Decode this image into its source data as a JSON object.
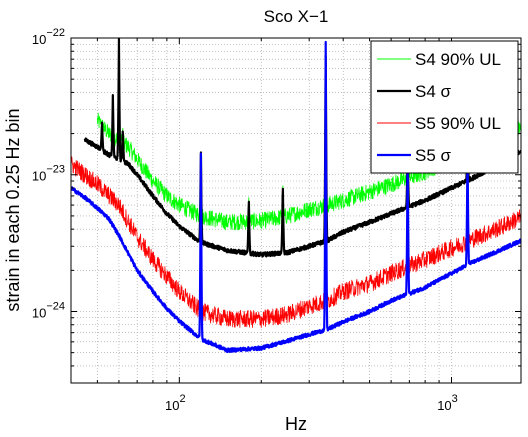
{
  "chart_data": {
    "type": "line",
    "title": "Sco X−1",
    "xlabel": "Hz",
    "ylabel": "strain in each 0.25 Hz bin",
    "x_scale": "log",
    "y_scale": "log",
    "xlim": [
      40,
      1800
    ],
    "ylim": [
      3e-25,
      1e-22
    ],
    "grid": "on",
    "legend_position": "top-right",
    "x_ticks": [
      {
        "value": 100,
        "label_base": "10",
        "label_exp": "2"
      },
      {
        "value": 1000,
        "label_base": "10",
        "label_exp": "3"
      }
    ],
    "y_ticks": [
      {
        "value": 1e-22,
        "label_base": "10",
        "label_exp": "−22"
      },
      {
        "value": 1e-23,
        "label_base": "10",
        "label_exp": "−23"
      },
      {
        "value": 1e-24,
        "label_base": "10",
        "label_exp": "−24"
      }
    ],
    "series": [
      {
        "name": "S4 90% UL",
        "color": "#00ff00",
        "width": 0.8,
        "noise": 0.14,
        "x": [
          50,
          55,
          60,
          65,
          70,
          80,
          90,
          100,
          120,
          150,
          200,
          250,
          300,
          350,
          400,
          500,
          600,
          800,
          1000,
          1200,
          1500,
          1800
        ],
        "y": [
          2.5e-23,
          2e-23,
          1.8e-23,
          1.6e-23,
          1.3e-23,
          9e-24,
          7e-24,
          6e-24,
          5e-24,
          4.5e-24,
          4.6e-24,
          5e-24,
          5.6e-24,
          6e-24,
          6.5e-24,
          7.5e-24,
          8.5e-24,
          1.05e-23,
          1.3e-23,
          1.55e-23,
          1.9e-23,
          2.3e-23
        ]
      },
      {
        "name": "S4 σ",
        "color": "#000000",
        "width": 2.2,
        "noise": 0.035,
        "x": [
          45,
          50,
          55,
          60,
          65,
          70,
          80,
          90,
          100,
          120,
          150,
          200,
          250,
          300,
          350,
          400,
          500,
          600,
          800,
          1000,
          1200,
          1500,
          1800
        ],
        "y": [
          1.8e-23,
          1.6e-23,
          1.4e-23,
          1.3e-23,
          1.2e-23,
          1e-23,
          7e-24,
          5.2e-24,
          4.2e-24,
          3.2e-24,
          2.8e-24,
          2.6e-24,
          2.7e-24,
          3e-24,
          3.3e-24,
          3.8e-24,
          4.5e-24,
          5.2e-24,
          6.5e-24,
          8e-24,
          9.5e-24,
          1.2e-23,
          1.5e-23
        ]
      },
      {
        "name": "S5 90% UL",
        "color": "#ff0000",
        "width": 0.8,
        "noise": 0.15,
        "x": [
          40,
          50,
          60,
          70,
          80,
          90,
          100,
          120,
          150,
          200,
          250,
          300,
          350,
          400,
          500,
          600,
          800,
          1000,
          1200,
          1500,
          1800
        ],
        "y": [
          1.2e-23,
          8.5e-24,
          6e-24,
          3.5e-24,
          2.4e-24,
          1.8e-24,
          1.4e-24,
          1e-24,
          8.8e-25,
          8.8e-25,
          9.5e-25,
          1.1e-24,
          1.2e-24,
          1.4e-24,
          1.6e-24,
          1.9e-24,
          2.4e-24,
          2.9e-24,
          3.4e-24,
          4.1e-24,
          4.9e-24
        ]
      },
      {
        "name": "S5 σ",
        "color": "#0000ff",
        "width": 2.2,
        "noise": 0.03,
        "x": [
          40,
          45,
          50,
          55,
          60,
          70,
          80,
          90,
          100,
          120,
          150,
          200,
          250,
          300,
          350,
          400,
          500,
          600,
          800,
          1000,
          1200,
          1500,
          1800
        ],
        "y": [
          8e-24,
          6.8e-24,
          5.7e-24,
          4.8e-24,
          3.6e-24,
          2e-24,
          1.4e-24,
          1.05e-24,
          8.5e-25,
          6.3e-25,
          5.2e-25,
          5.4e-25,
          6.1e-25,
          6.8e-25,
          7.4e-25,
          8.4e-25,
          1e-24,
          1.2e-24,
          1.5e-24,
          1.9e-24,
          2.3e-24,
          2.8e-24,
          3.3e-24
        ]
      }
    ],
    "spikes": [
      {
        "f": 60,
        "series": [
          0,
          1
        ],
        "peak": 1e-22
      },
      {
        "f": 57,
        "series": [
          0,
          1
        ],
        "peak": 4e-23
      },
      {
        "f": 62,
        "series": [
          0,
          1
        ],
        "peak": 2.2e-23
      },
      {
        "f": 52,
        "series": [
          0,
          1
        ],
        "peak": 2.5e-23
      },
      {
        "f": 120,
        "series": [
          0,
          1,
          2,
          3
        ],
        "peak": 1.6e-23
      },
      {
        "f": 180,
        "series": [
          0,
          1
        ],
        "peak": 7e-24
      },
      {
        "f": 240,
        "series": [
          0,
          1
        ],
        "peak": 9e-24
      },
      {
        "f": 345,
        "series": [
          0,
          1,
          2,
          3
        ],
        "peak": 1e-22
      },
      {
        "f": 690,
        "series": [
          0,
          1,
          2,
          3
        ],
        "peak": 1.6e-23
      },
      {
        "f": 1145,
        "series": [
          0,
          1,
          2,
          3
        ],
        "peak": 1.6e-23
      },
      {
        "f": 1380,
        "series": [
          0,
          1
        ],
        "peak": 2.4e-23
      }
    ]
  }
}
